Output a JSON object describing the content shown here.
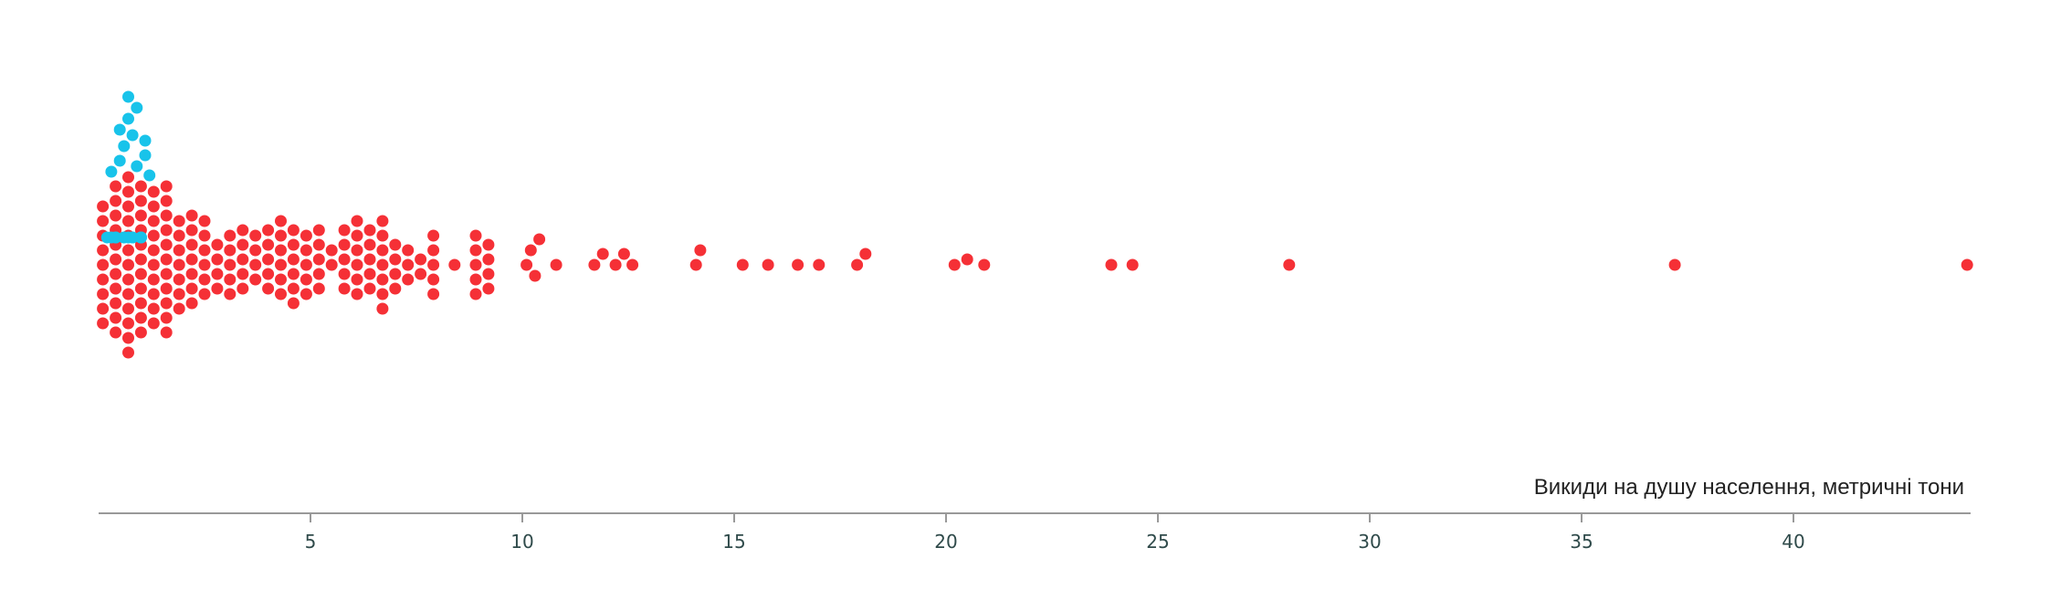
{
  "chart_data": {
    "type": "scatter",
    "subtype": "beeswarm",
    "title": "",
    "xlabel": "Викиди на душу населення, метричні тони",
    "xlim": [
      0,
      44
    ],
    "xticks": [
      5,
      10,
      15,
      20,
      25,
      30,
      35,
      40
    ],
    "colors": {
      "highlight": "#18c3ea",
      "default": "#f53036",
      "axis": "#999999"
    },
    "legend": false,
    "grid": false,
    "series": [
      {
        "name": "",
        "color": "#18c3ea",
        "x": [
          0.2,
          0.3,
          0.4,
          0.5,
          0.6,
          0.6,
          0.7,
          0.8,
          0.8,
          0.9,
          1.0,
          1.0,
          1.1,
          1.2,
          0.3,
          0.4,
          0.5,
          0.7,
          0.8,
          0.9,
          1.0,
          1.1,
          0.6,
          0.7
        ]
      },
      {
        "name": "",
        "color": "#f53036",
        "x": [
          0.1,
          0.1,
          0.1,
          0.1,
          0.1,
          0.1,
          0.1,
          0.1,
          0.1,
          0.4,
          0.4,
          0.4,
          0.4,
          0.4,
          0.4,
          0.4,
          0.4,
          0.4,
          0.4,
          0.4,
          0.7,
          0.7,
          0.7,
          0.7,
          0.7,
          0.7,
          0.7,
          0.7,
          0.7,
          0.7,
          0.7,
          0.7,
          0.7,
          1.0,
          1.0,
          1.0,
          1.0,
          1.0,
          1.0,
          1.0,
          1.0,
          1.0,
          1.0,
          1.0,
          1.3,
          1.3,
          1.3,
          1.3,
          1.3,
          1.3,
          1.3,
          1.3,
          1.3,
          1.3,
          1.6,
          1.6,
          1.6,
          1.6,
          1.6,
          1.6,
          1.6,
          1.6,
          1.6,
          1.6,
          1.6,
          1.9,
          1.9,
          1.9,
          1.9,
          1.9,
          1.9,
          1.9,
          2.2,
          2.2,
          2.2,
          2.2,
          2.2,
          2.2,
          2.2,
          2.5,
          2.5,
          2.5,
          2.5,
          2.5,
          2.5,
          2.8,
          2.8,
          2.8,
          2.8,
          3.1,
          3.1,
          3.1,
          3.1,
          3.1,
          3.4,
          3.4,
          3.4,
          3.4,
          3.4,
          3.7,
          3.7,
          3.7,
          3.7,
          4.0,
          4.0,
          4.0,
          4.0,
          4.0,
          4.3,
          4.3,
          4.3,
          4.3,
          4.3,
          4.3,
          4.6,
          4.6,
          4.6,
          4.6,
          4.6,
          4.6,
          4.9,
          4.9,
          4.9,
          4.9,
          4.9,
          5.2,
          5.2,
          5.2,
          5.2,
          5.2,
          5.5,
          5.5,
          5.8,
          5.8,
          5.8,
          5.8,
          5.8,
          6.1,
          6.1,
          6.1,
          6.1,
          6.1,
          6.1,
          6.4,
          6.4,
          6.4,
          6.4,
          6.4,
          6.7,
          6.7,
          6.7,
          6.7,
          6.7,
          6.7,
          6.7,
          7.0,
          7.0,
          7.0,
          7.0,
          7.3,
          7.3,
          7.3,
          7.6,
          7.6,
          7.9,
          7.9,
          7.9,
          7.9,
          7.9,
          8.4,
          8.9,
          8.9,
          8.9,
          8.9,
          8.9,
          9.2,
          9.2,
          9.2,
          9.2,
          10.1,
          10.2,
          10.3,
          10.4,
          10.8,
          11.7,
          11.9,
          12.2,
          12.4,
          12.6,
          14.1,
          14.2,
          15.2,
          15.8,
          16.5,
          17.0,
          17.9,
          18.1,
          20.2,
          20.5,
          20.9,
          23.9,
          24.4,
          28.1,
          37.2,
          44.1
        ]
      }
    ]
  }
}
